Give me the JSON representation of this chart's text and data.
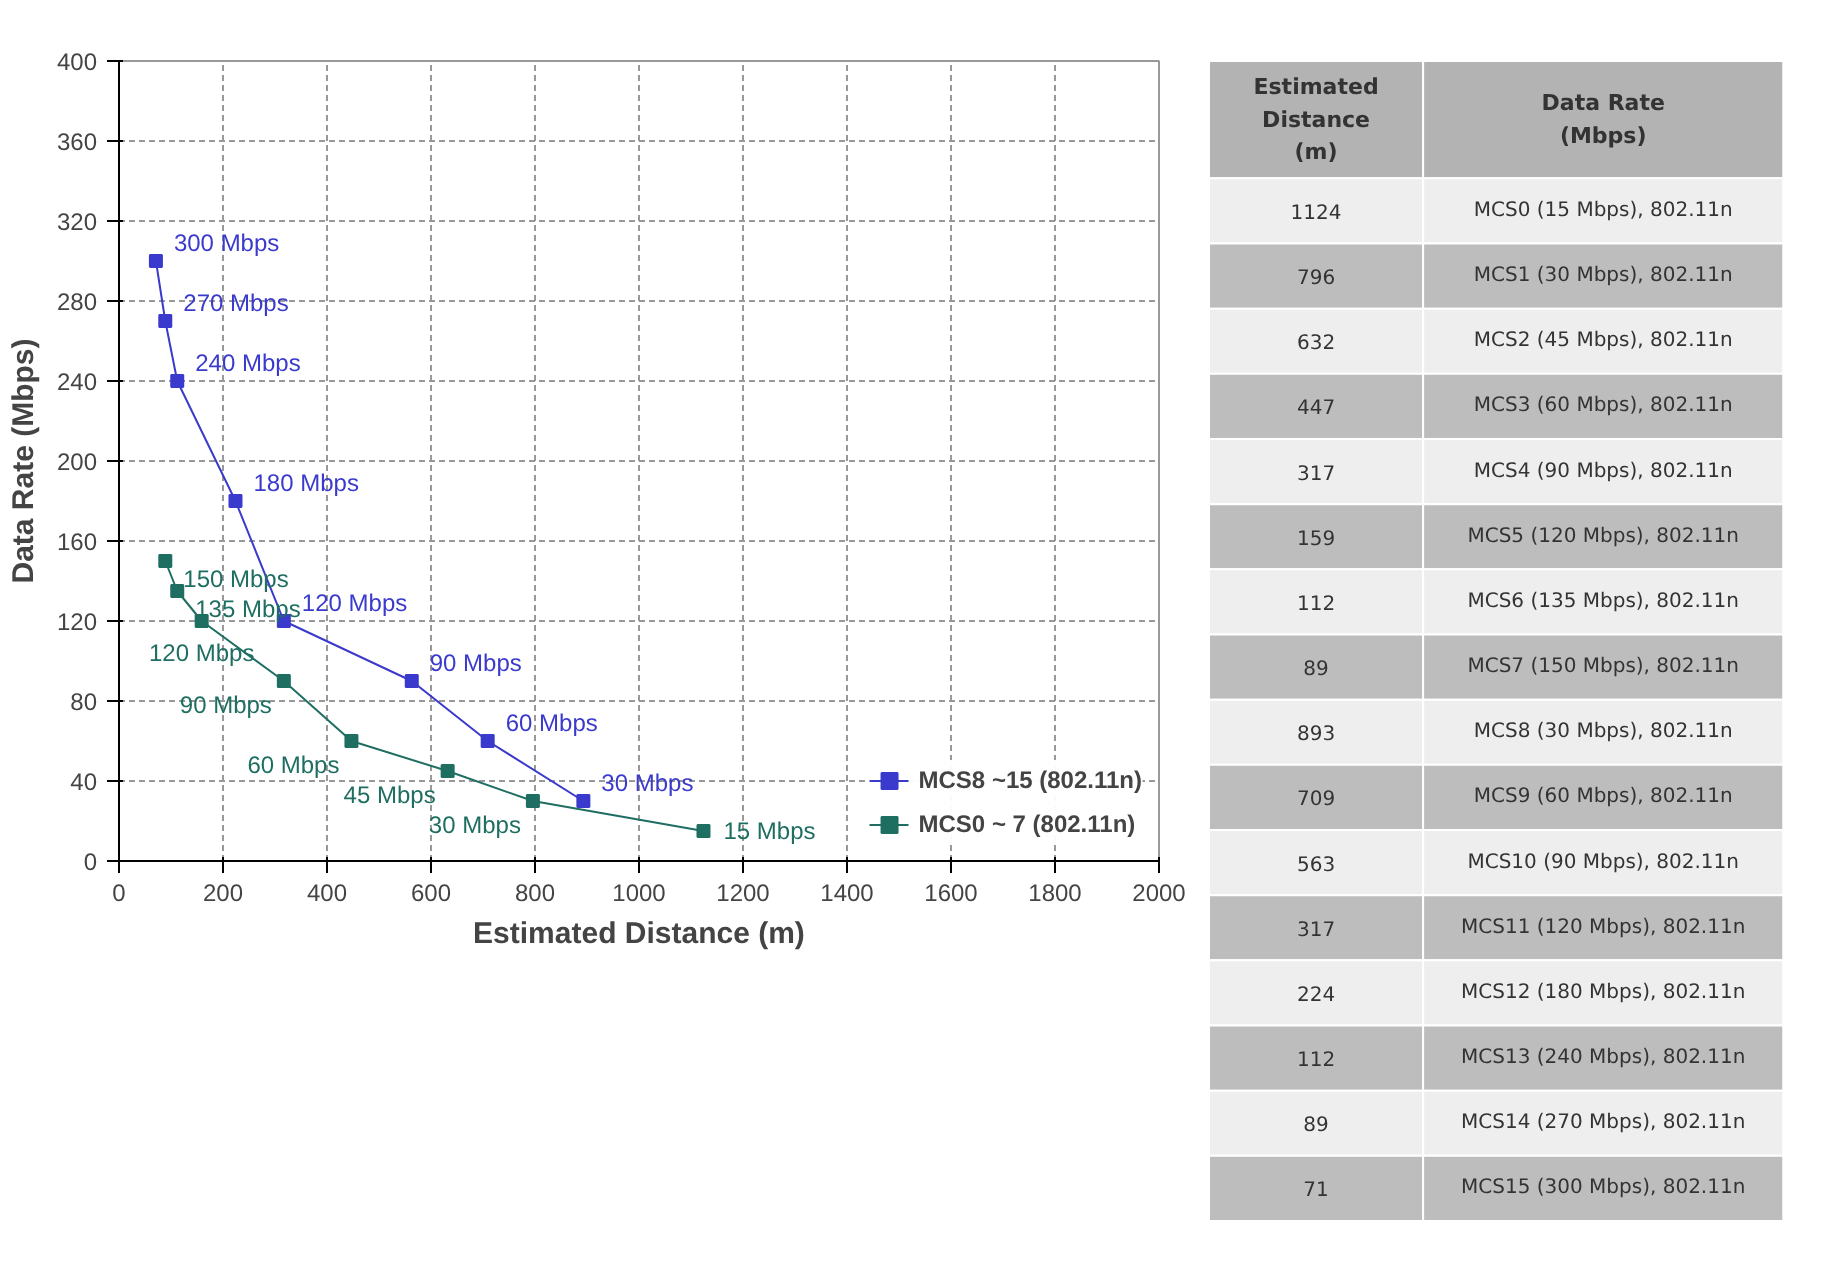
{
  "chart_data": [
    {
      "type": "line",
      "xlabel": "Estimated Distance (m)",
      "ylabel": "Data Rate (Mbps)",
      "xlim": [
        0,
        2000
      ],
      "ylim": [
        0,
        400
      ],
      "xticks": [
        0,
        200,
        400,
        600,
        800,
        1000,
        1200,
        1400,
        1600,
        1800,
        2000
      ],
      "yticks": [
        0,
        40,
        80,
        120,
        160,
        200,
        240,
        280,
        320,
        360,
        400
      ],
      "grid": true,
      "legend": "bottom right",
      "marker": "square",
      "line_style": "solid",
      "series": [
        {
          "name": "MCS8 ~15 (802.11n)",
          "color": "#3a3acc",
          "x": [
            71,
            89,
            112,
            224,
            317,
            563,
            709,
            893
          ],
          "values": [
            300,
            270,
            240,
            180,
            120,
            90,
            60,
            30
          ],
          "value_labels": [
            "300 Mbps",
            "270 Mbps",
            "240 Mbps",
            "180 Mbps",
            "120 Mbps",
            "90 Mbps",
            "60 Mbps",
            "30 Mbps"
          ]
        },
        {
          "name": "MCS0 ~ 7 (802.11n)",
          "color": "#1f6e62",
          "x": [
            89,
            112,
            159,
            317,
            447,
            632,
            796,
            1124
          ],
          "values": [
            150,
            135,
            120,
            90,
            60,
            45,
            30,
            15
          ],
          "value_labels": [
            "150 Mbps",
            "135 Mbps",
            "120 Mbps",
            "90 Mbps",
            "60 Mbps",
            "45 Mbps",
            "30 Mbps",
            "15 Mbps"
          ]
        }
      ]
    },
    {
      "type": "other",
      "annotations": [
        "Estimated Distance (m)",
        "Data Rate (Mbps)",
        "1124",
        "MCS0 (15 Mbps), 802.11n",
        "796",
        "MCS1 (30 Mbps), 802.11n",
        "632",
        "MCS2 (45 Mbps), 802.11n",
        "447",
        "MCS3 (60 Mbps), 802.11n",
        "317",
        "MCS4 (90 Mbps), 802.11n",
        "159",
        "MCS5 (120 Mbps), 802.11n",
        "112",
        "MCS6 (135 Mbps), 802.11n",
        "89",
        "MCS7 (150 Mbps), 802.11n",
        "893",
        "MCS8 (30 Mbps), 802.11n",
        "709",
        "MCS9 (60 Mbps), 802.11n",
        "563",
        "MCS10 (90 Mbps), 802.11n",
        "317",
        "MCS11 (120 Mbps), 802.11n",
        "224",
        "MCS12 (180 Mbps), 802.11n",
        "112",
        "MCS13 (240 Mbps), 802.11n",
        "89",
        "MCS14 (270 Mbps), 802.11n",
        "71",
        "MCS15 (300 Mbps), 802.11n"
      ]
    }
  ]
}
